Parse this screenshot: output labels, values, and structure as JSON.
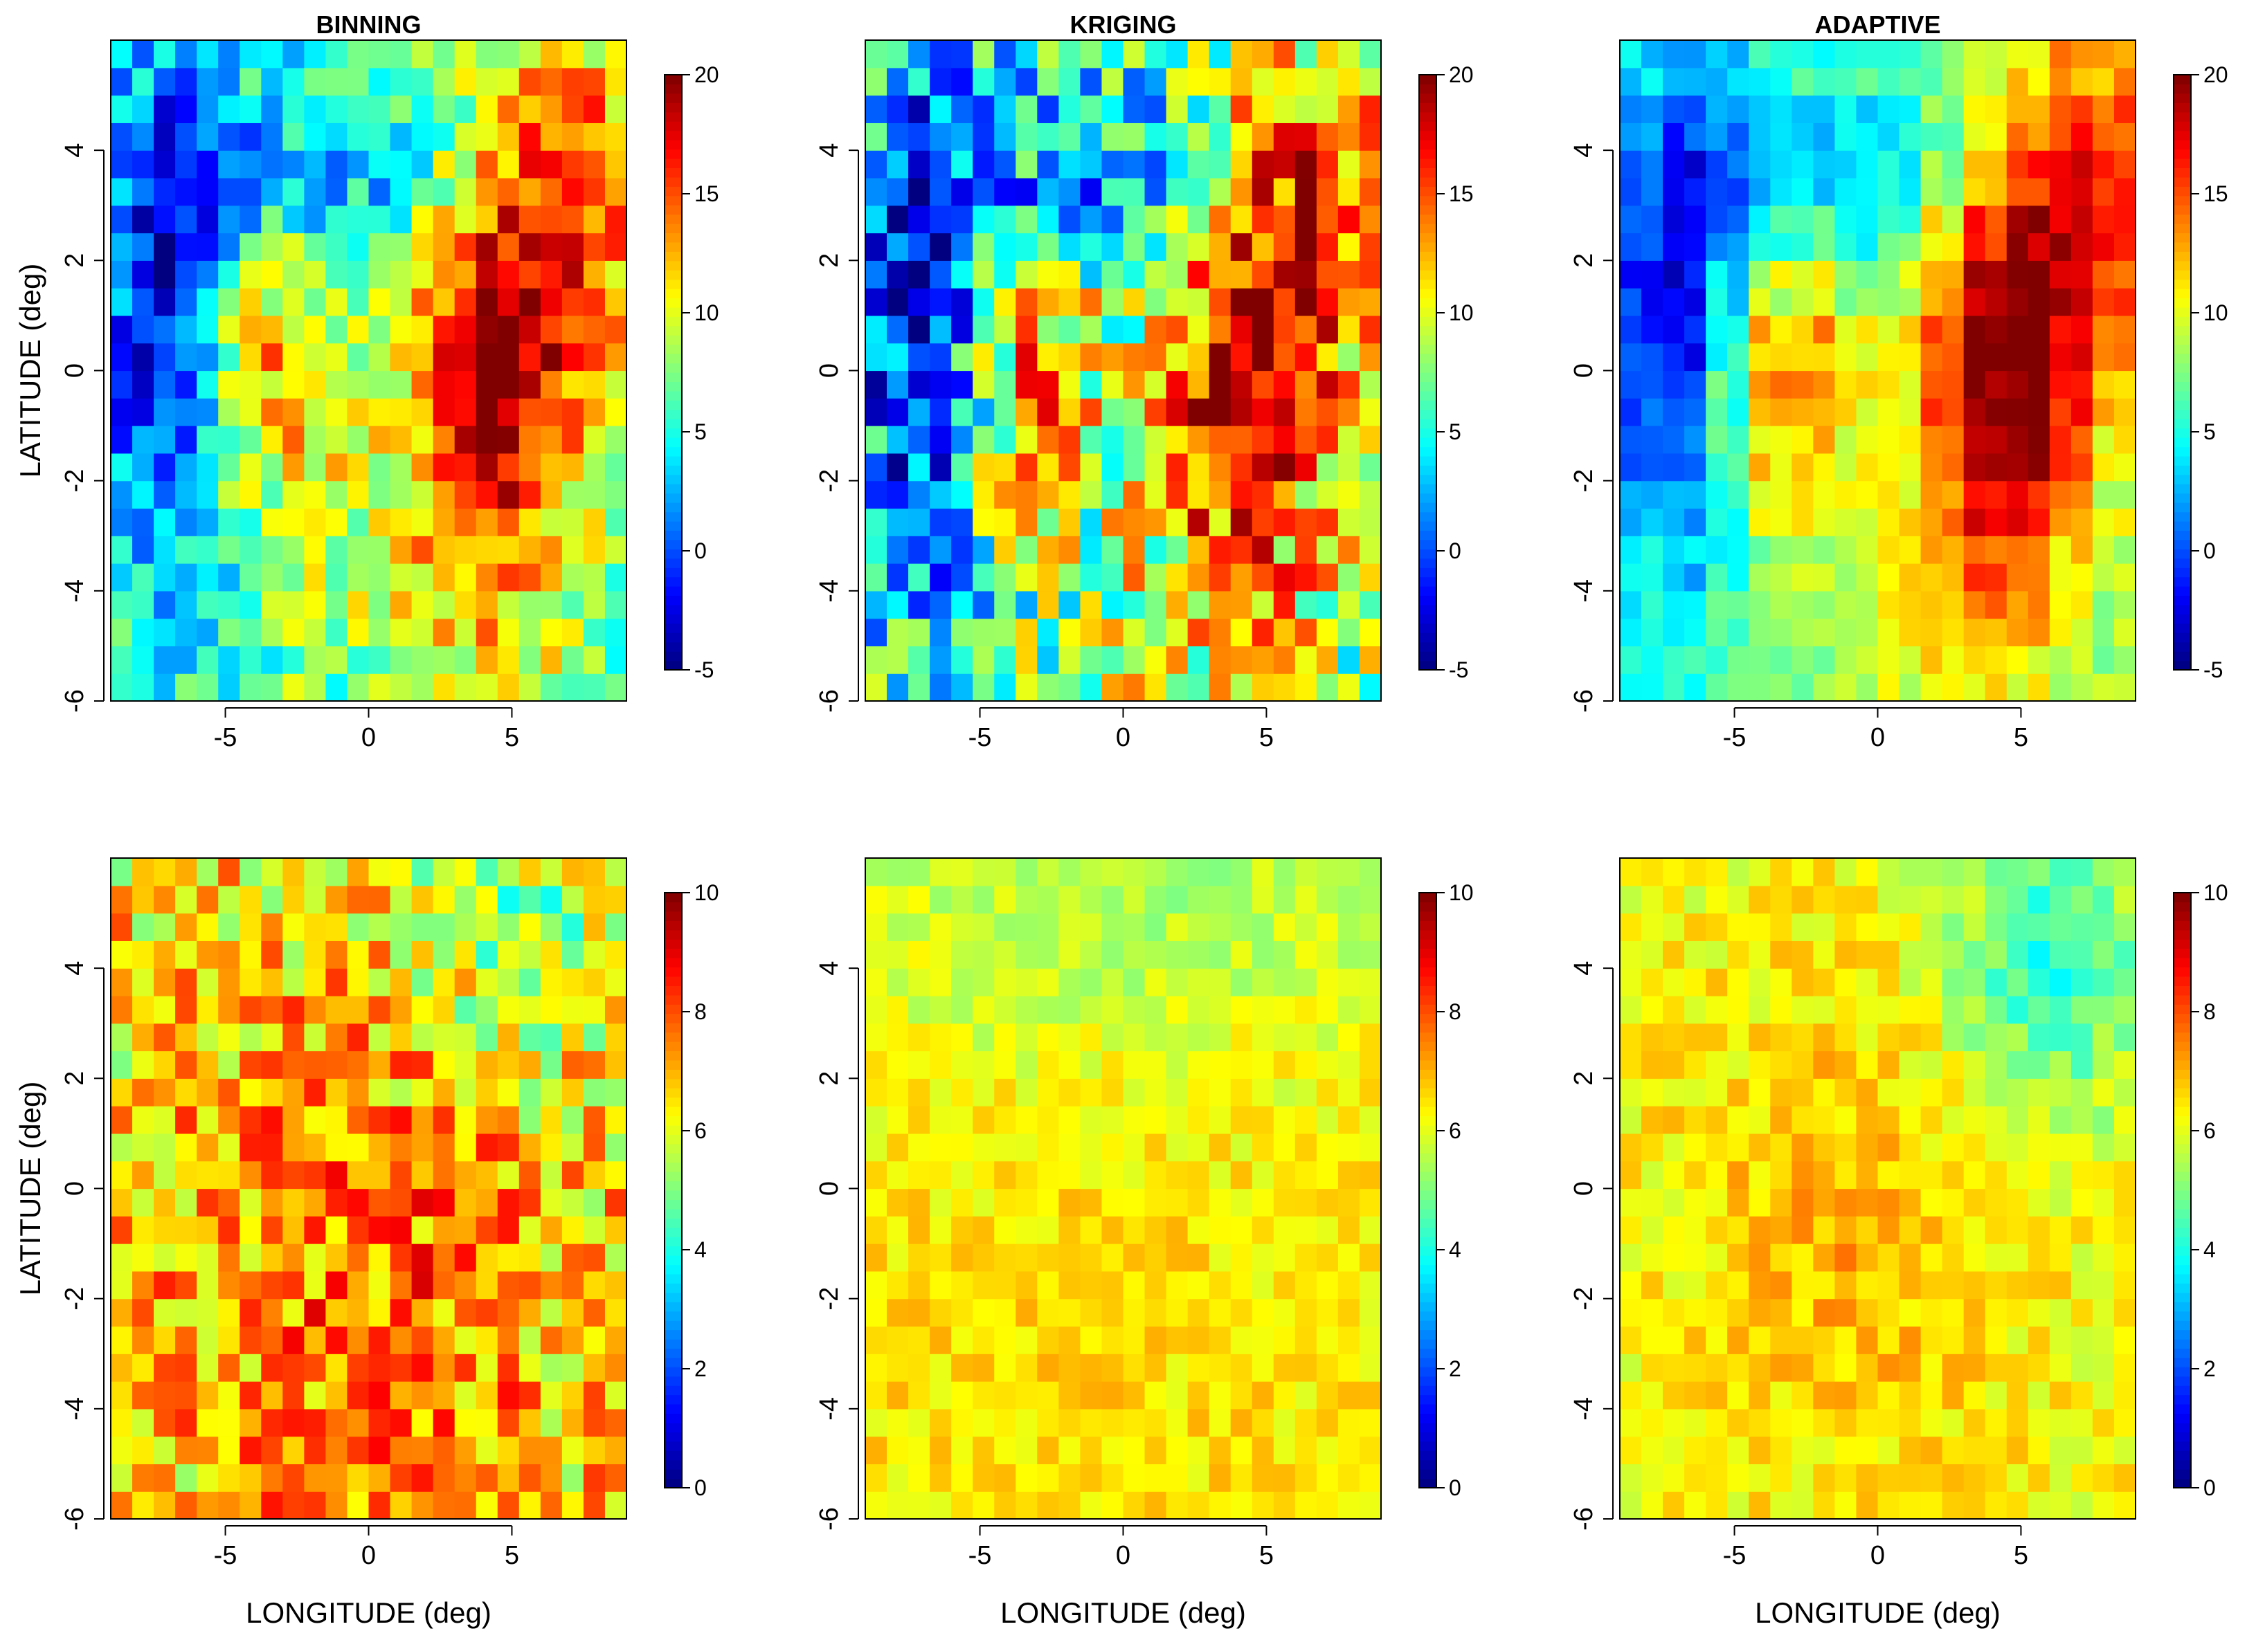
{
  "chart_data": [
    {
      "panel": "binning-mean",
      "type": "heatmap",
      "title": "BINNING",
      "xlabel": "",
      "ylabel": "LATITUDE (deg)",
      "xlim": [
        -9,
        9
      ],
      "ylim": [
        -6,
        6
      ],
      "xticks": [
        "-5",
        "0",
        "5"
      ],
      "yticks": [
        "-6",
        "-4",
        "-2",
        "0",
        "2",
        "4"
      ],
      "colorbar": {
        "range": [
          -5,
          20
        ],
        "ticks": [
          "-5",
          "0",
          "5",
          "10",
          "15",
          "20"
        ]
      },
      "grid_cols": 24,
      "grid_rows": 24
    },
    {
      "panel": "kriging-mean",
      "type": "heatmap",
      "title": "KRIGING",
      "xlabel": "",
      "ylabel": "",
      "xlim": [
        -9,
        9
      ],
      "ylim": [
        -6,
        6
      ],
      "xticks": [
        "-5",
        "0",
        "5"
      ],
      "yticks": [
        "-6",
        "-4",
        "-2",
        "0",
        "2",
        "4"
      ],
      "colorbar": {
        "range": [
          -5,
          20
        ],
        "ticks": [
          "-5",
          "0",
          "5",
          "10",
          "15",
          "20"
        ]
      },
      "grid_cols": 24,
      "grid_rows": 24
    },
    {
      "panel": "adaptive-mean",
      "type": "heatmap",
      "title": "ADAPTIVE",
      "xlabel": "",
      "ylabel": "",
      "xlim": [
        -9,
        9
      ],
      "ylim": [
        -6,
        6
      ],
      "xticks": [
        "-5",
        "0",
        "5"
      ],
      "yticks": [
        "-6",
        "-4",
        "-2",
        "0",
        "2",
        "4"
      ],
      "colorbar": {
        "range": [
          -5,
          20
        ],
        "ticks": [
          "-5",
          "0",
          "5",
          "10",
          "15",
          "20"
        ]
      },
      "grid_cols": 24,
      "grid_rows": 24
    },
    {
      "panel": "binning-sd",
      "type": "heatmap",
      "title": "",
      "xlabel": "LONGITUDE (deg)",
      "ylabel": "LATITUDE (deg)",
      "xlim": [
        -9,
        9
      ],
      "ylim": [
        -6,
        6
      ],
      "xticks": [
        "-5",
        "0",
        "5"
      ],
      "yticks": [
        "-6",
        "-4",
        "-2",
        "0",
        "2",
        "4"
      ],
      "colorbar": {
        "range": [
          0,
          10
        ],
        "ticks": [
          "0",
          "2",
          "4",
          "6",
          "8",
          "10"
        ]
      },
      "grid_cols": 24,
      "grid_rows": 24
    },
    {
      "panel": "kriging-sd",
      "type": "heatmap",
      "title": "",
      "xlabel": "LONGITUDE (deg)",
      "ylabel": "",
      "xlim": [
        -9,
        9
      ],
      "ylim": [
        -6,
        6
      ],
      "xticks": [
        "-5",
        "0",
        "5"
      ],
      "yticks": [
        "-6",
        "-4",
        "-2",
        "0",
        "2",
        "4"
      ],
      "colorbar": {
        "range": [
          0,
          10
        ],
        "ticks": [
          "0",
          "2",
          "4",
          "6",
          "8",
          "10"
        ]
      },
      "grid_cols": 24,
      "grid_rows": 24
    },
    {
      "panel": "adaptive-sd",
      "type": "heatmap",
      "title": "",
      "xlabel": "LONGITUDE (deg)",
      "ylabel": "",
      "xlim": [
        -9,
        9
      ],
      "ylim": [
        -6,
        6
      ],
      "xticks": [
        "-5",
        "0",
        "5"
      ],
      "yticks": [
        "-6",
        "-4",
        "-2",
        "0",
        "2",
        "4"
      ],
      "colorbar": {
        "range": [
          0,
          10
        ],
        "ticks": [
          "0",
          "2",
          "4",
          "6",
          "8",
          "10"
        ]
      },
      "grid_cols": 24,
      "grid_rows": 24
    }
  ]
}
